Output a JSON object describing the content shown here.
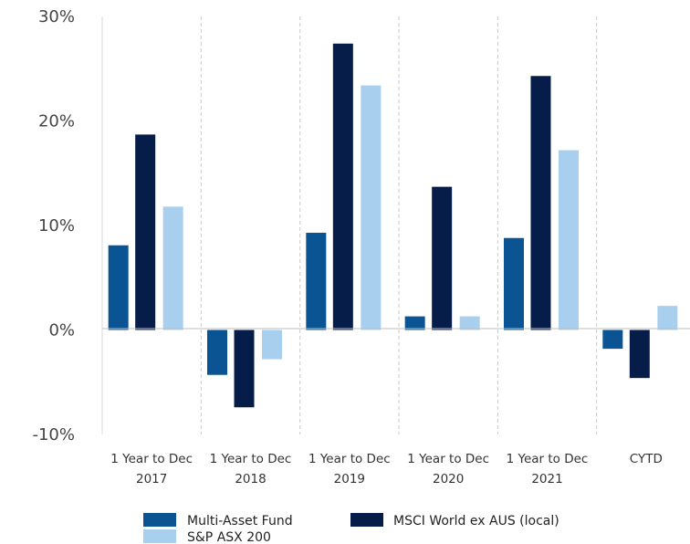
{
  "chart_data": {
    "type": "bar",
    "categories": [
      [
        "1 Year to Dec",
        "2017"
      ],
      [
        "1 Year to Dec",
        "2018"
      ],
      [
        "1 Year to Dec",
        "2019"
      ],
      [
        "1 Year to Dec",
        "2020"
      ],
      [
        "1 Year to Dec",
        "2021"
      ],
      [
        "CYTD"
      ]
    ],
    "series": [
      {
        "name": "Multi-Asset Fund",
        "color": "#0a5494",
        "values": [
          8.1,
          -4.3,
          9.3,
          1.3,
          8.8,
          -1.8
        ]
      },
      {
        "name": "MSCI World ex AUS (local)",
        "color": "#071d49",
        "values": [
          18.7,
          -7.4,
          27.4,
          13.7,
          24.3,
          -4.6
        ]
      },
      {
        "name": "S&P ASX 200",
        "color": "#a8cfee",
        "values": [
          11.8,
          -2.8,
          23.4,
          1.3,
          17.2,
          2.3
        ]
      }
    ],
    "yticks": [
      "30%",
      "20%",
      "10%",
      "0%",
      "-10%"
    ],
    "ytick_values": [
      30,
      20,
      10,
      0,
      -10
    ],
    "ylim": [
      -10,
      30
    ],
    "grid": "vertical dashed category separators",
    "legend_position": "bottom"
  }
}
